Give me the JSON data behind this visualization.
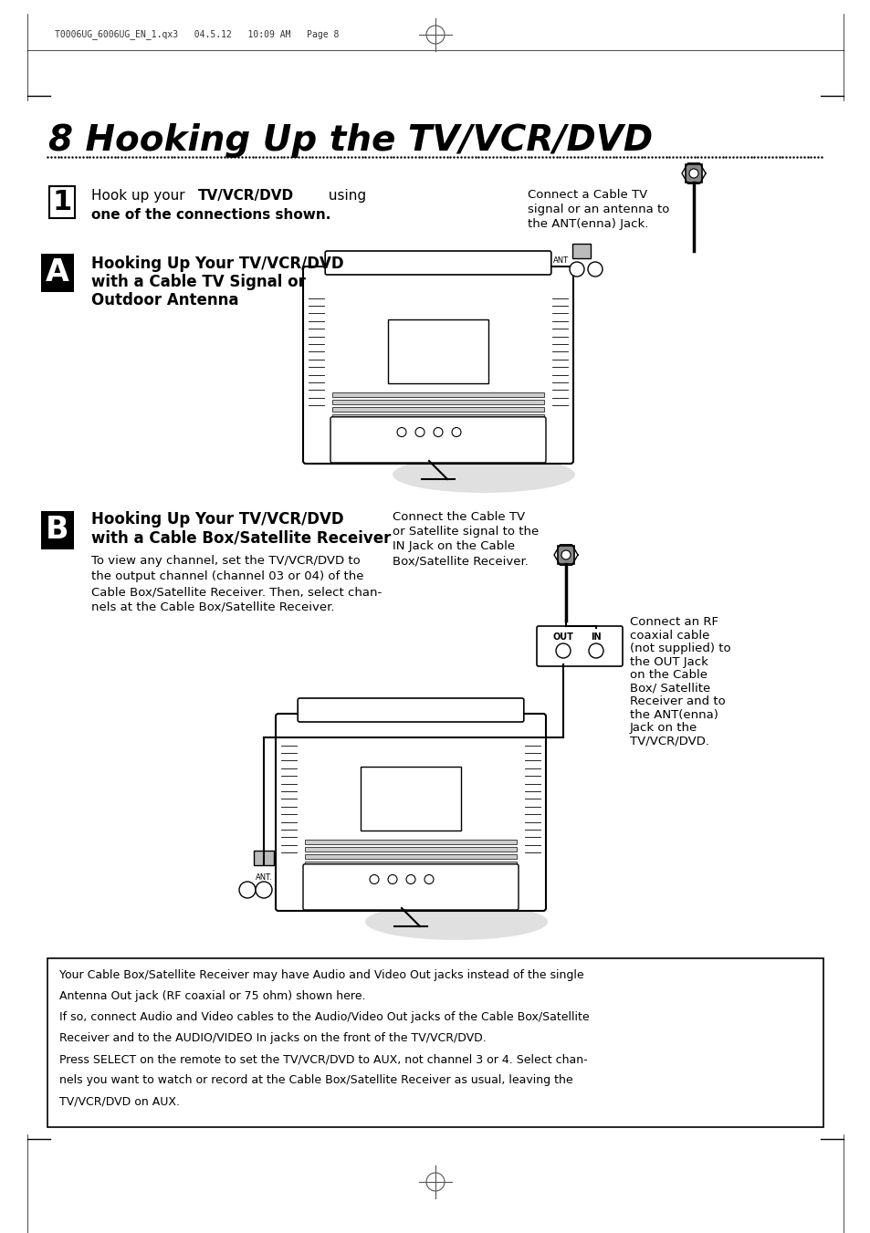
{
  "bg_color": "#ffffff",
  "page_width": 9.54,
  "page_height": 13.51,
  "header_text": "T0006UG_6006UG_EN_1.qx3   04.5.12   10:09 AM   Page 8",
  "title_number": "8",
  "title_text": " Hooking Up the TV/VCR/DVD",
  "section_a_callout": "Connect a Cable TV\nsignal or an antenna to\nthe ANT(enna) Jack.",
  "section_b_body": "To view any channel, set the TV/VCR/DVD to\nthe output channel (channel 03 or 04) of the\nCable Box/Satellite Receiver. Then, select chan-\nnels at the Cable Box/Satellite Receiver.",
  "section_b_callout1": "Connect the Cable TV\nor Satellite signal to the\nIN Jack on the Cable\nBox/Satellite Receiver.",
  "section_b_callout2": "Connect an RF\ncoaxial cable\n(not supplied) to\nthe OUT Jack\non the Cable\nBox/ Satellite\nReceiver and to\nthe ANT(enna)\nJack on the\nTV/VCR/DVD.",
  "note_box_text": "Your Cable Box/Satellite Receiver may have Audio and Video Out jacks instead of the single\nAntenna Out jack (RF coaxial or 75 ohm) shown here.\nIf so, connect Audio and Video cables to the Audio/Video Out jacks of the Cable Box/Satellite\nReceiver and to the AUDIO/VIDEO In jacks on the front of the TV/VCR/DVD.\nPress SELECT on the remote to set the TV/VCR/DVD to AUX, not channel 3 or 4. Select chan-\nnels you want to watch or record at the Cable Box/Satellite Receiver as usual, leaving the\nTV/VCR/DVD on AUX."
}
